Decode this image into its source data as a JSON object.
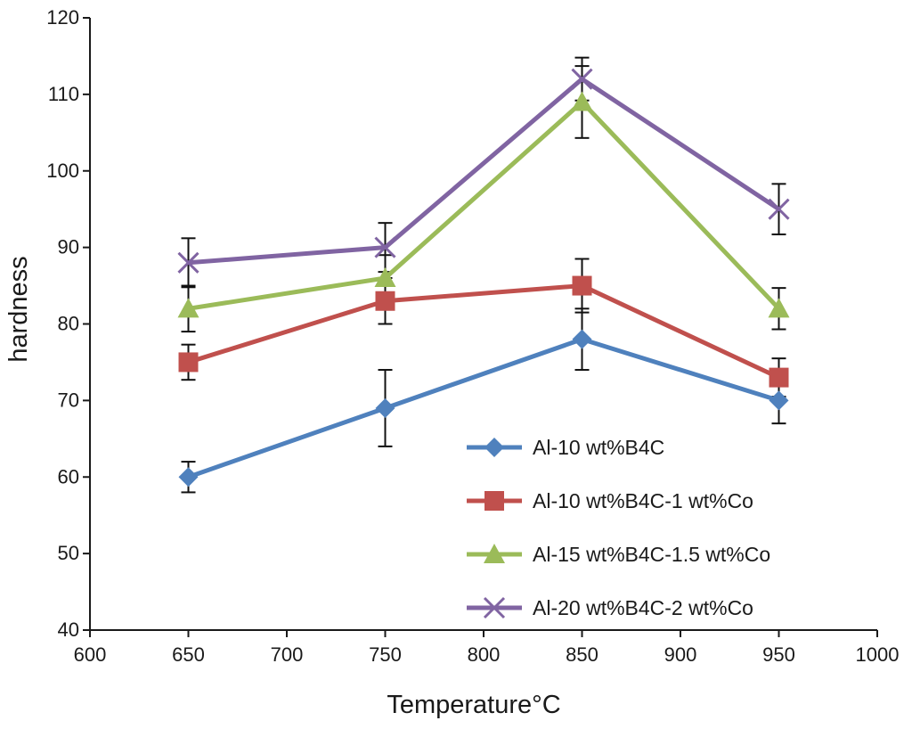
{
  "chart_data": {
    "type": "line",
    "title": "",
    "xlabel": "Temperature°C",
    "ylabel": "hardness",
    "xlim": [
      600,
      1000
    ],
    "ylim": [
      40,
      120
    ],
    "xticks": [
      600,
      650,
      700,
      750,
      800,
      850,
      900,
      950,
      1000
    ],
    "yticks": [
      40,
      50,
      60,
      70,
      80,
      90,
      100,
      110,
      120
    ],
    "x": [
      650,
      750,
      850,
      950
    ],
    "grid": false,
    "legend_position": "bottom-right",
    "series": [
      {
        "name": "Al-10 wt%B4C",
        "color": "#4f81bd",
        "marker": "diamond",
        "values": [
          60,
          69,
          78,
          70
        ],
        "error": [
          2,
          5,
          4,
          3
        ]
      },
      {
        "name": "Al-10 wt%B4C-1 wt%Co",
        "color": "#c0504d",
        "marker": "square",
        "values": [
          75,
          83,
          85,
          73
        ],
        "error": [
          2.3,
          3,
          3.5,
          2.5
        ]
      },
      {
        "name": "Al-15 wt%B4C-1.5 wt%Co",
        "color": "#9bbb59",
        "marker": "triangle",
        "values": [
          82,
          86,
          109,
          82
        ],
        "error": [
          3,
          3,
          4.7,
          2.7
        ]
      },
      {
        "name": "Al-20 wt%B4C-2 wt%Co",
        "color": "#8064a2",
        "marker": "x",
        "values": [
          88,
          90,
          112,
          95
        ],
        "error": [
          3.2,
          3.2,
          2.8,
          3.3
        ]
      }
    ]
  }
}
